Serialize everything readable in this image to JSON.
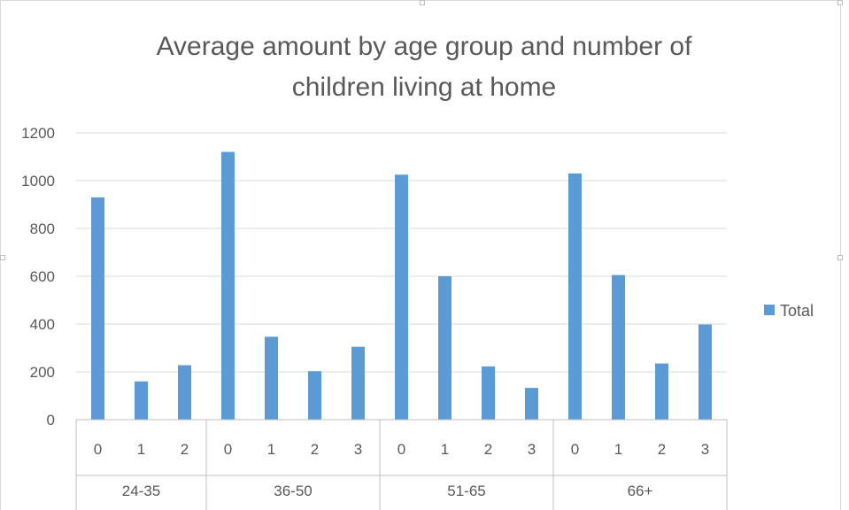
{
  "chart_data": {
    "type": "bar",
    "title": "Average amount by age group and number of\nchildren living at home",
    "xlabel": "",
    "ylabel": "",
    "ylim": [
      0,
      1200
    ],
    "yticks": [
      0,
      200,
      400,
      600,
      800,
      1000,
      1200
    ],
    "grid": true,
    "legend_position": "right",
    "bar_color": "#5b9bd5",
    "groups": [
      {
        "label": "24-35",
        "categories": [
          "0",
          "1",
          "2"
        ]
      },
      {
        "label": "36-50",
        "categories": [
          "0",
          "1",
          "2",
          "3"
        ]
      },
      {
        "label": "51-65",
        "categories": [
          "0",
          "1",
          "2",
          "3"
        ]
      },
      {
        "label": "66+",
        "categories": [
          "0",
          "1",
          "2",
          "3"
        ]
      }
    ],
    "series": [
      {
        "name": "Total",
        "values": [
          930,
          160,
          228,
          1120,
          347,
          203,
          305,
          1025,
          600,
          223,
          133,
          1030,
          605,
          235,
          398
        ]
      }
    ]
  }
}
